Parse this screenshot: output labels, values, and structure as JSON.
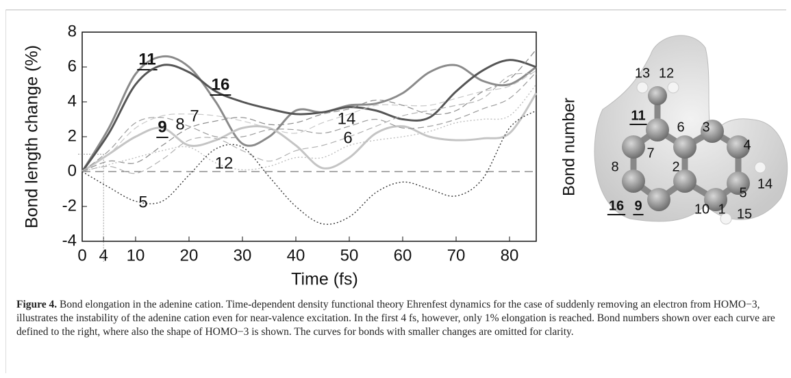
{
  "chart_data": {
    "type": "line",
    "x_label": "Time (fs)",
    "y_label": "Bond length change (%)",
    "xlim": [
      0,
      85
    ],
    "ylim": [
      -4,
      8
    ],
    "xticks": [
      0,
      4,
      10,
      20,
      30,
      40,
      50,
      60,
      70,
      80
    ],
    "yticks": [
      -4,
      -2,
      0,
      2,
      4,
      6,
      8
    ],
    "zero_line": true,
    "marker": {
      "x": 4,
      "y": 1
    },
    "x": [
      0,
      5,
      10,
      15,
      20,
      25,
      30,
      35,
      40,
      45,
      50,
      55,
      60,
      65,
      70,
      75,
      80,
      85
    ],
    "series": [
      {
        "name": "11",
        "color": "#8a8a8a",
        "style": "solid",
        "width": 3,
        "emphasis": true,
        "values": [
          0,
          2.5,
          5.6,
          6.6,
          6.0,
          4.0,
          1.6,
          2.0,
          3.5,
          3.4,
          3.8,
          3.9,
          4.5,
          5.7,
          6.1,
          5.2,
          5.0,
          6.0
        ]
      },
      {
        "name": "16",
        "color": "#555555",
        "style": "solid",
        "width": 3,
        "emphasis": true,
        "values": [
          0,
          2.2,
          5.0,
          6.1,
          5.7,
          4.6,
          4.0,
          3.6,
          3.3,
          3.4,
          3.7,
          3.5,
          3.0,
          3.1,
          4.6,
          5.8,
          6.4,
          6.0
        ]
      },
      {
        "name": "9",
        "color": "#c4c4c4",
        "style": "solid",
        "width": 3,
        "emphasis": true,
        "values": [
          0,
          1.0,
          2.0,
          2.5,
          1.5,
          1.8,
          2.5,
          2.5,
          1.5,
          0.2,
          0.8,
          2.2,
          2.6,
          2.0,
          1.8,
          1.9,
          2.2,
          4.5
        ]
      },
      {
        "name": "8",
        "color": "#9a9a9a",
        "style": "dashed",
        "width": 1.2,
        "emphasis": false,
        "values": [
          0,
          1.2,
          2.8,
          3.1,
          2.6,
          2.0,
          2.0,
          2.4,
          2.4,
          2.2,
          2.6,
          3.0,
          2.5,
          2.6,
          3.0,
          3.6,
          4.2,
          5.7
        ]
      },
      {
        "name": "7",
        "color": "#c8c8c8",
        "style": "dashed",
        "width": 1.2,
        "emphasis": false,
        "values": [
          0,
          1.0,
          2.5,
          3.2,
          3.3,
          3.2,
          2.9,
          2.5,
          2.2,
          2.8,
          3.3,
          3.8,
          3.8,
          3.8,
          4.2,
          4.6,
          4.9,
          5.8
        ]
      },
      {
        "name": "14",
        "color": "#888888",
        "style": "dashed",
        "width": 1.2,
        "emphasis": false,
        "values": [
          0,
          0.6,
          0.5,
          1.5,
          2.5,
          2.9,
          3.1,
          2.7,
          2.8,
          3.3,
          3.6,
          4.1,
          3.8,
          3.3,
          3.5,
          4.6,
          5.3,
          7.0
        ]
      },
      {
        "name": "6",
        "color": "#b0b0b0",
        "style": "dashed",
        "width": 1.2,
        "emphasis": false,
        "values": [
          0,
          0.3,
          -0.1,
          0.7,
          1.8,
          1.9,
          1.2,
          0.6,
          1.2,
          1.5,
          2.0,
          2.6,
          3.2,
          3.5,
          3.8,
          4.2,
          5.5,
          5.6
        ]
      },
      {
        "name": "12",
        "color": "#bdbdbd",
        "style": "dotted",
        "width": 1.4,
        "emphasis": false,
        "values": [
          0,
          0.4,
          0.8,
          1.2,
          1.4,
          0.5,
          0.1,
          0.3,
          0.8,
          0.8,
          1.5,
          1.8,
          2.0,
          2.3,
          2.8,
          3.0,
          3.2,
          5.0
        ]
      },
      {
        "name": "5",
        "color": "#333333",
        "style": "dotted",
        "width": 1.4,
        "emphasis": false,
        "values": [
          0,
          -0.9,
          -1.7,
          -1.7,
          -0.2,
          1.3,
          1.4,
          -0.3,
          -2.0,
          -3.0,
          -2.6,
          -1.2,
          -0.6,
          -1.0,
          -1.4,
          -0.4,
          2.5,
          3.5
        ]
      }
    ]
  },
  "molecule": {
    "axis_label": "Bond number",
    "labels": [
      {
        "text": "13",
        "underline": false
      },
      {
        "text": "12",
        "underline": false
      },
      {
        "text": "11",
        "underline": true
      },
      {
        "text": "6",
        "underline": false
      },
      {
        "text": "3",
        "underline": false
      },
      {
        "text": "4",
        "underline": false
      },
      {
        "text": "7",
        "underline": false
      },
      {
        "text": "8",
        "underline": false
      },
      {
        "text": "2",
        "underline": false
      },
      {
        "text": "5",
        "underline": false
      },
      {
        "text": "14",
        "underline": false
      },
      {
        "text": "10",
        "underline": false
      },
      {
        "text": "1",
        "underline": false
      },
      {
        "text": "15",
        "underline": false
      },
      {
        "text": "16",
        "underline": true
      },
      {
        "text": "9",
        "underline": true
      }
    ]
  },
  "caption": {
    "label": "Figure 4.",
    "text": "Bond elongation in the adenine cation. Time-dependent density functional theory Ehrenfest dynamics for the case of suddenly removing an electron from HOMO−3, illustrates the instability of the adenine cation even for near-valence excitation. In the first 4 fs, however, only 1% elongation is reached. Bond numbers shown over each curve are defined to the right, where also the shape of HOMO−3 is shown. The curves for bonds with smaller changes are omitted for clarity."
  }
}
